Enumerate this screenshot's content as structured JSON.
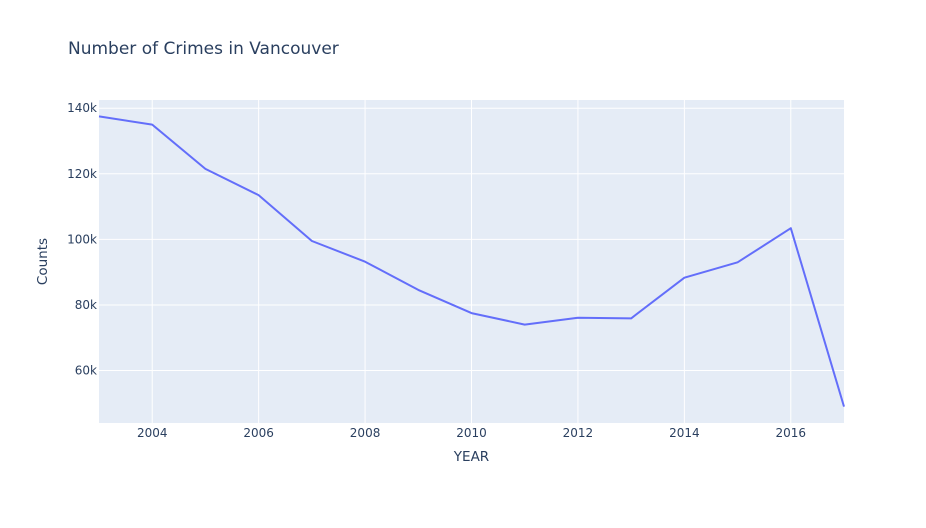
{
  "chart_data": {
    "type": "line",
    "title": "Number of Crimes in Vancouver",
    "xlabel": "YEAR",
    "ylabel": "Counts",
    "xlim": [
      2003,
      2017
    ],
    "ylim": [
      44000,
      142500
    ],
    "x_ticks": [
      2004,
      2006,
      2008,
      2010,
      2012,
      2014,
      2016
    ],
    "y_ticks": [
      60000,
      80000,
      100000,
      120000,
      140000
    ],
    "y_tick_labels": [
      "60k",
      "80k",
      "100k",
      "120k",
      "140k"
    ],
    "grid": true,
    "plot_background": "#e5ecf6",
    "grid_color": "#ffffff",
    "series": [
      {
        "color": "#636efa",
        "x": [
          2003,
          2004,
          2005,
          2006,
          2007,
          2008,
          2009,
          2010,
          2011,
          2012,
          2013,
          2014,
          2015,
          2016,
          2017
        ],
        "y": [
          137500,
          135000,
          121500,
          113500,
          99500,
          93200,
          84600,
          77500,
          74000,
          76100,
          75900,
          88300,
          93000,
          103400,
          49000
        ]
      }
    ]
  }
}
